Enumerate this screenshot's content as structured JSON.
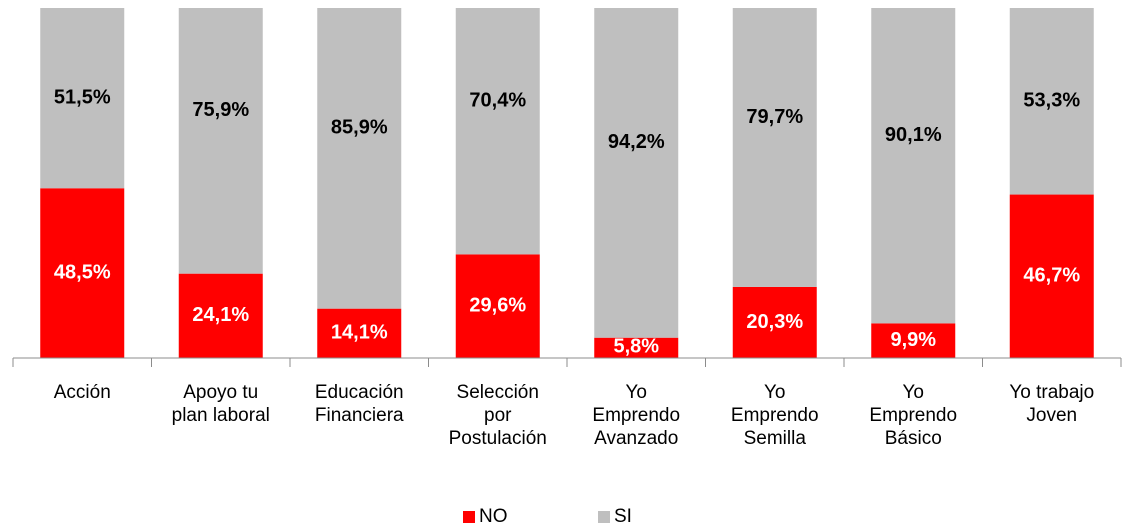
{
  "chart_data": {
    "type": "stacked_bar",
    "categories": [
      "Acción",
      "Apoyo tu\nplan laboral",
      "Educación\nFinanciera",
      "Selección\npor\nPostulación",
      "Yo\nEmprendo\nAvanzado",
      "Yo\nEmprendo\nSemilla",
      "Yo\nEmprendo\nBásico",
      "Yo trabajo\nJoven"
    ],
    "series": [
      {
        "name": "NO",
        "color": "#ff0000",
        "label_color": "#ffffff",
        "values": [
          48.5,
          24.1,
          14.1,
          29.6,
          5.8,
          20.3,
          9.9,
          46.7
        ],
        "value_labels": [
          "48,5%",
          "24,1%",
          "14,1%",
          "29,6%",
          "5,8%",
          "20,3%",
          "9,9%",
          "46,7%"
        ]
      },
      {
        "name": "SI",
        "color": "#bfbfbf",
        "label_color": "#000000",
        "values": [
          51.5,
          75.9,
          85.9,
          70.4,
          94.2,
          79.7,
          90.1,
          53.3
        ],
        "value_labels": [
          "51,5%",
          "75,9%",
          "85,9%",
          "70,4%",
          "94,2%",
          "79,7%",
          "90,1%",
          "53,3%"
        ]
      }
    ],
    "legend": "bottom"
  }
}
